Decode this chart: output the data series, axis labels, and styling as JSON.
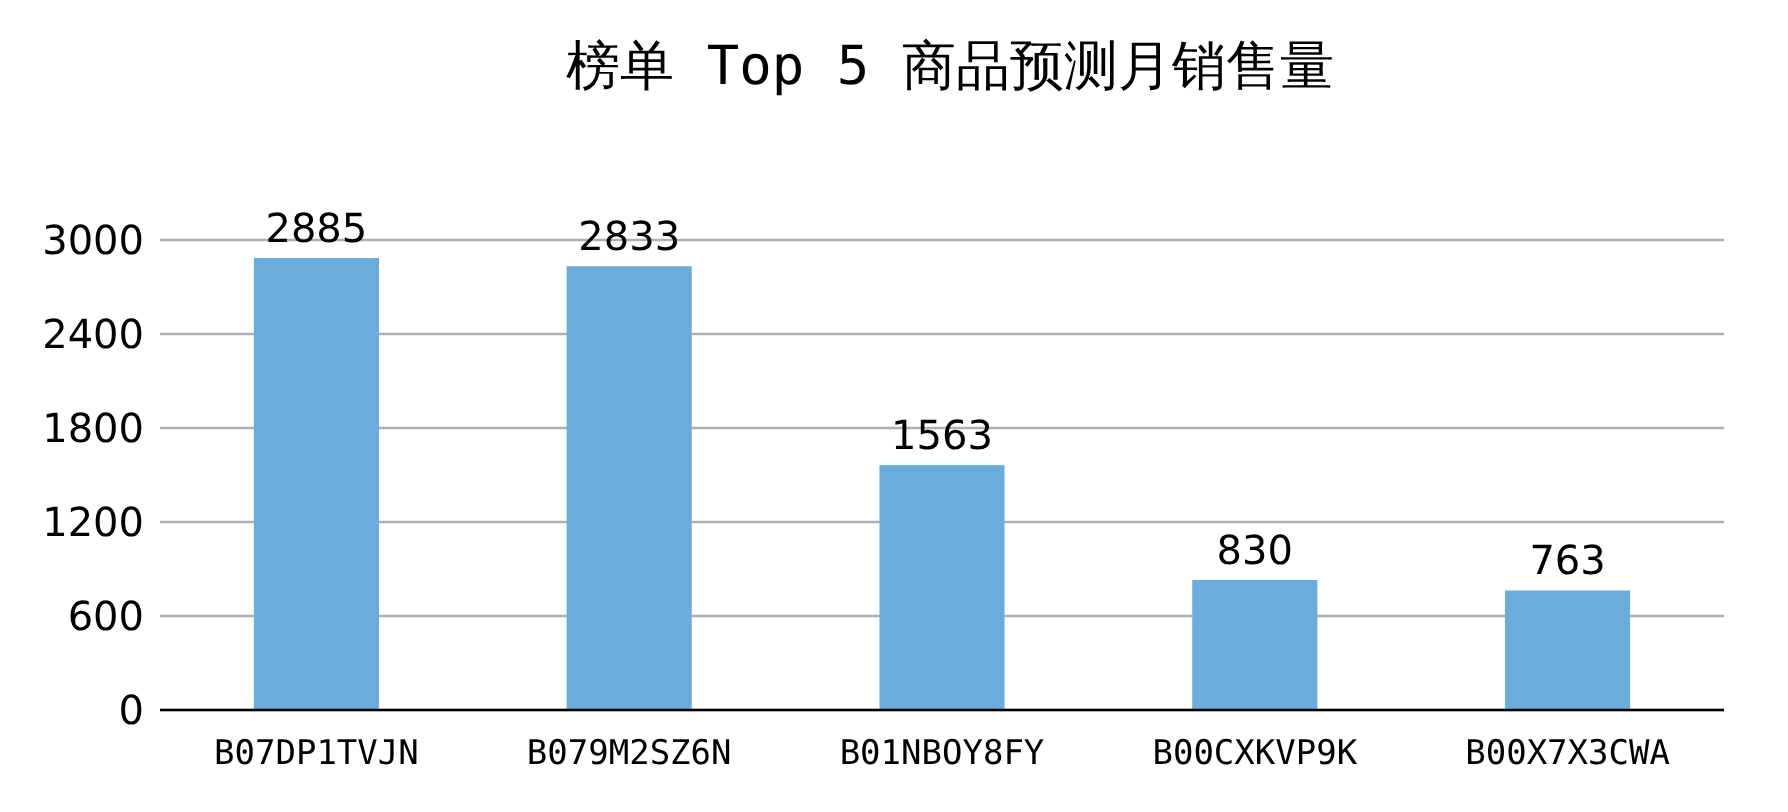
{
  "chart_data": {
    "type": "bar",
    "title": "榜单 Top 5 商品预测月销售量",
    "categories": [
      "B07DP1TVJN",
      "B079M2SZ6N",
      "B01NBOY8FY",
      "B00CXKVP9K",
      "B00X7X3CWA"
    ],
    "values": [
      2885,
      2833,
      1563,
      830,
      763
    ],
    "color": "#6aaddc",
    "ylim": [
      0,
      3000
    ],
    "yticks": [
      0,
      600,
      1200,
      1800,
      2400,
      3000
    ],
    "grid": "y",
    "data_labels": true
  }
}
